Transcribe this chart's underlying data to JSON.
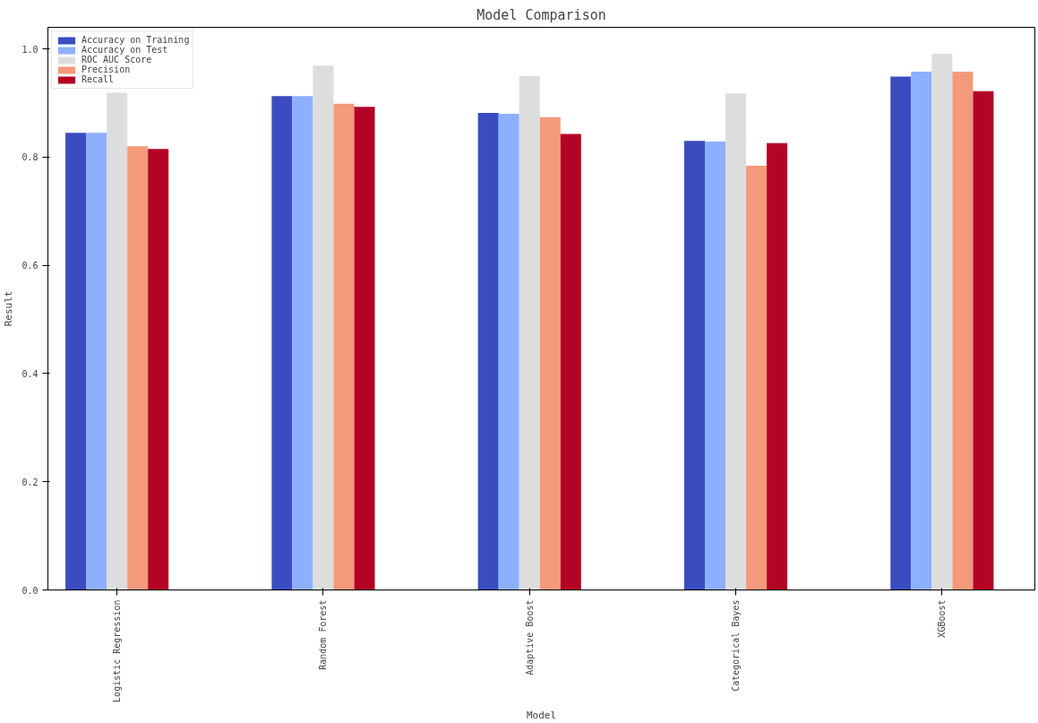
{
  "chart_data": {
    "type": "bar",
    "title": "Model Comparison",
    "xlabel": "Model",
    "ylabel": "Result",
    "categories": [
      "Logistic Regression",
      "Random Forest",
      "Adaptive Boost",
      "Categorical Bayes",
      "XGBoost"
    ],
    "series": [
      {
        "name": "Accuracy on Training",
        "color": "#3b4cc0",
        "values": [
          0.845,
          0.913,
          0.882,
          0.83,
          0.949
        ]
      },
      {
        "name": "Accuracy on Test",
        "color": "#8db0fe",
        "values": [
          0.845,
          0.913,
          0.88,
          0.829,
          0.958
        ]
      },
      {
        "name": "ROC AUC Score",
        "color": "#dddddd",
        "values": [
          0.919,
          0.969,
          0.95,
          0.918,
          0.991
        ]
      },
      {
        "name": "Precision",
        "color": "#f49a7b",
        "values": [
          0.82,
          0.899,
          0.874,
          0.784,
          0.958
        ]
      },
      {
        "name": "Recall",
        "color": "#b40426",
        "values": [
          0.815,
          0.893,
          0.843,
          0.826,
          0.922
        ]
      }
    ],
    "ylim": [
      0,
      1.04
    ],
    "yticks": [
      {
        "value": 0,
        "label": "0.0"
      },
      0.2,
      0.4,
      0.6,
      0.8,
      {
        "value": 1,
        "label": "1.0"
      }
    ],
    "grid": false,
    "legend": "top left"
  }
}
